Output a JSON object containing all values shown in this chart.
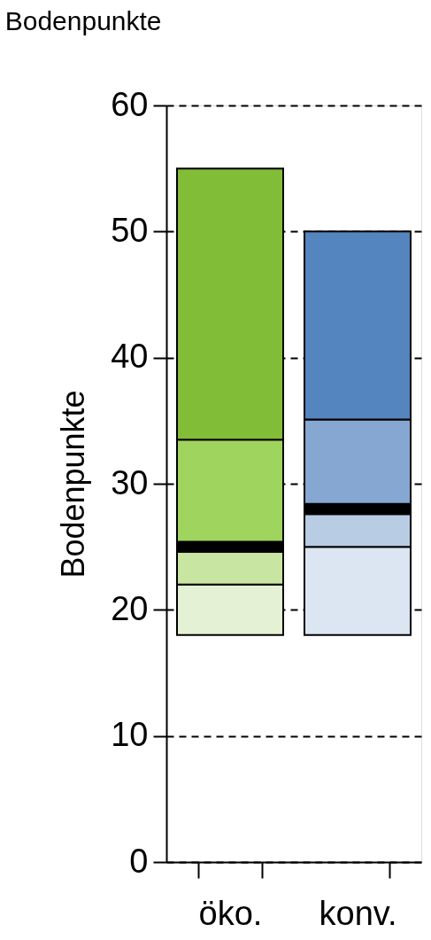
{
  "chart_data": {
    "type": "bar",
    "title": "Bodenpunkte",
    "ylabel": "Bodenpunkte",
    "categories": [
      "öko.",
      "konv."
    ],
    "series": [
      {
        "colors": [
          "#e4f1d4",
          "#dce6f2"
        ],
        "base": [
          18,
          18
        ],
        "values": [
          4,
          7
        ]
      },
      {
        "colors": [
          "#c8e5a2",
          "#b8cde4"
        ],
        "base": [
          22,
          25
        ],
        "values": [
          2.6,
          2.6
        ]
      },
      {
        "colors": [
          "#000000",
          "#000000"
        ],
        "base": [
          24.6,
          27.6
        ],
        "values": [
          0.8,
          0.8
        ]
      },
      {
        "colors": [
          "#9fd45e",
          "#87a7d3"
        ],
        "base": [
          25.4,
          28.4
        ],
        "values": [
          8.1,
          6.7
        ]
      },
      {
        "colors": [
          "#82bd37",
          "#5485be"
        ],
        "base": [
          33.5,
          35.1
        ],
        "values": [
          21.5,
          14.9
        ]
      }
    ],
    "ylim": [
      0,
      60
    ],
    "yticks": [
      0,
      10,
      20,
      30,
      40,
      50,
      60
    ],
    "grid": "y"
  }
}
